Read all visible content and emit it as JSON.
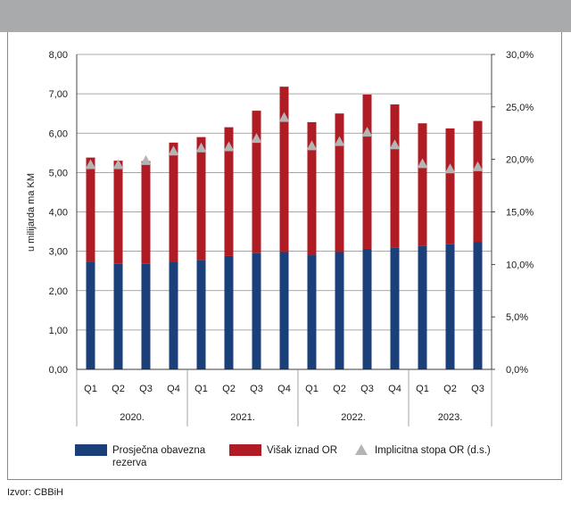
{
  "chart_data": {
    "type": "bar",
    "stacked": true,
    "ylabel": "u milijarda ma KM",
    "ylim": [
      0,
      8
    ],
    "y_ticks": [
      "0,00",
      "1,00",
      "2,00",
      "3,00",
      "4,00",
      "5,00",
      "6,00",
      "7,00",
      "8,00"
    ],
    "y2lim": [
      0,
      30
    ],
    "y2_ticks": [
      "0,0%",
      "5,0%",
      "10,0%",
      "15,0%",
      "20,0%",
      "25,0%",
      "30,0%"
    ],
    "grid": true,
    "categories": [
      "Q1",
      "Q2",
      "Q3",
      "Q4",
      "Q1",
      "Q2",
      "Q3",
      "Q4",
      "Q1",
      "Q2",
      "Q3",
      "Q4",
      "Q1",
      "Q2",
      "Q3"
    ],
    "year_groups": [
      {
        "label": "2020.",
        "count": 4
      },
      {
        "label": "2021.",
        "count": 4
      },
      {
        "label": "2022.",
        "count": 4
      },
      {
        "label": "2023.",
        "count": 3
      }
    ],
    "series": [
      {
        "name": "Prosječna obavezna rezerva",
        "color": "#1b3f78",
        "values": [
          2.72,
          2.68,
          2.68,
          2.73,
          2.78,
          2.88,
          2.95,
          2.98,
          2.9,
          2.98,
          3.06,
          3.1,
          3.13,
          3.18,
          3.24
        ]
      },
      {
        "name": "Višak iznad OR",
        "color": "#b01c24",
        "values": [
          2.66,
          2.62,
          2.61,
          3.03,
          3.12,
          3.27,
          3.62,
          4.2,
          3.38,
          3.52,
          3.92,
          3.63,
          3.12,
          2.94,
          3.07
        ]
      },
      {
        "name": "Implicitna stopa OR (d.s.)",
        "color": "#b4b4b4",
        "axis": "secondary",
        "values": [
          19.5,
          19.5,
          19.9,
          20.8,
          21.1,
          21.2,
          22.0,
          24.0,
          21.3,
          21.7,
          22.6,
          21.4,
          19.6,
          19.1,
          19.3
        ]
      }
    ],
    "legend": {
      "position": "bottom",
      "labels": [
        "Prosječna obavezna",
        "rezerva",
        "Višak iznad OR",
        "Implicitna stopa OR (d.s.)"
      ]
    }
  },
  "source": "Izvor: CBBiH"
}
